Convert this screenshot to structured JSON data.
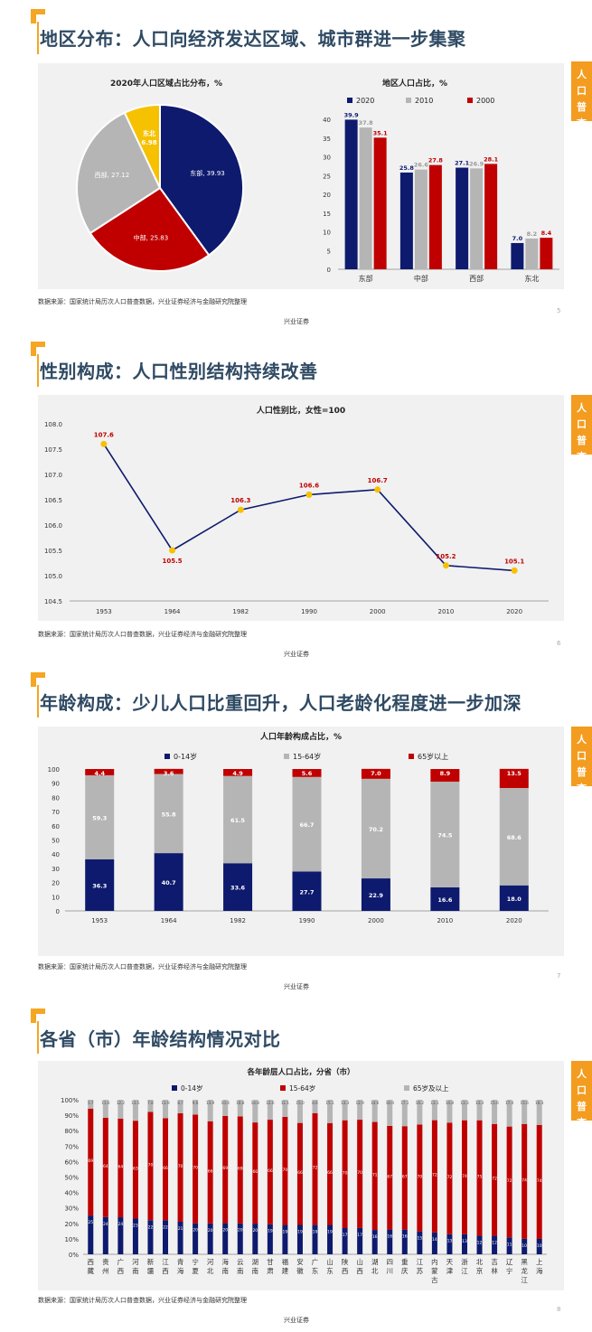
{
  "common": {
    "tab_label_lines": [
      "人",
      "口",
      "普",
      "查"
    ],
    "source": "数据来源：国家统计局历次人口普查数据，兴业证券经济与金融研究院整理",
    "logo": "兴业证券"
  },
  "colors": {
    "navy": "#0d1a6e",
    "gray": "#b5b5b5",
    "red": "#c00000",
    "yellow": "#f6c100",
    "accent": "#f39c1f",
    "title": "#2f4a63"
  },
  "slides": [
    {
      "title": "地区分布：人口向经济发达区域、城市群进一步集聚",
      "page_number": "5"
    },
    {
      "title": "性别构成：人口性别结构持续改善",
      "page_number": "6"
    },
    {
      "title": "年龄构成：少儿人口比重回升，人口老龄化程度进一步加深",
      "page_number": "7"
    },
    {
      "title": "各省（市）年龄结构情况对比",
      "page_number": "8"
    }
  ],
  "chart_data": [
    {
      "type": "pie",
      "title": "2020年人口区域占比分布，%",
      "labels": [
        "东部",
        "中部",
        "西部",
        "东北"
      ],
      "values": [
        39.93,
        25.83,
        27.12,
        6.98
      ],
      "label_texts": [
        "东部, 39.93",
        "中部, 25.83",
        "西部, 27.12",
        "东北, 6.98"
      ]
    },
    {
      "type": "bar",
      "title": "地区人口占比，%",
      "categories": [
        "东部",
        "中部",
        "西部",
        "东北"
      ],
      "series": [
        {
          "name": "2020",
          "values": [
            39.9,
            25.8,
            27.1,
            7.0
          ]
        },
        {
          "name": "2010",
          "values": [
            37.8,
            26.6,
            26.9,
            8.2
          ]
        },
        {
          "name": "2000",
          "values": [
            35.1,
            27.8,
            28.1,
            8.4
          ]
        }
      ],
      "ylim": [
        0,
        40
      ],
      "yticks": [
        0,
        5,
        10,
        15,
        20,
        25,
        30,
        35,
        40
      ],
      "legend": "top"
    },
    {
      "type": "line",
      "title": "人口性别比，女性=100",
      "x": [
        "1953",
        "1964",
        "1982",
        "1990",
        "2000",
        "2010",
        "2020"
      ],
      "values": [
        107.6,
        105.5,
        106.3,
        106.6,
        106.7,
        105.2,
        105.1
      ],
      "ylim": [
        104.5,
        108.0
      ],
      "yticks": [
        "104.5",
        "105.0",
        "105.5",
        "106.0",
        "106.5",
        "107.0",
        "107.5",
        "108.0"
      ]
    },
    {
      "type": "bar",
      "stacked": true,
      "title": "人口年龄构成占比，%",
      "categories": [
        "1953",
        "1964",
        "1982",
        "1990",
        "2000",
        "2010",
        "2020"
      ],
      "series": [
        {
          "name": "0-14岁",
          "values": [
            36.3,
            40.7,
            33.6,
            27.7,
            22.9,
            16.6,
            18.0
          ]
        },
        {
          "name": "15-64岁",
          "values": [
            59.3,
            55.8,
            61.5,
            66.7,
            70.2,
            74.5,
            68.6
          ]
        },
        {
          "name": "65岁以上",
          "values": [
            4.4,
            3.6,
            4.9,
            5.6,
            7.0,
            8.9,
            13.5
          ]
        }
      ],
      "ylim": [
        0,
        100
      ],
      "yticks": [
        0,
        10,
        20,
        30,
        40,
        50,
        60,
        70,
        80,
        90,
        100
      ],
      "legend": "top"
    },
    {
      "type": "bar",
      "stacked": true,
      "title": "各年龄层人口占比，分省（市）",
      "categories": [
        "西藏",
        "贵州",
        "广西",
        "河南",
        "新疆",
        "江西",
        "青海",
        "宁夏",
        "河北",
        "海南",
        "云南",
        "湖南",
        "甘肃",
        "福建",
        "安徽",
        "广东",
        "山东",
        "陕西",
        "山西",
        "湖北",
        "四川",
        "重庆",
        "江苏",
        "内蒙古",
        "天津",
        "浙江",
        "北京",
        "吉林",
        "辽宁",
        "黑龙江",
        "上海"
      ],
      "category_lines": [
        [
          "西",
          "藏"
        ],
        [
          "贵",
          "州"
        ],
        [
          "广",
          "西"
        ],
        [
          "河",
          "南"
        ],
        [
          "新",
          "疆"
        ],
        [
          "江",
          "西"
        ],
        [
          "青",
          "海"
        ],
        [
          "宁",
          "夏"
        ],
        [
          "河",
          "北"
        ],
        [
          "海",
          "南"
        ],
        [
          "云",
          "南"
        ],
        [
          "湖",
          "南"
        ],
        [
          "甘",
          "肃"
        ],
        [
          "福",
          "建"
        ],
        [
          "安",
          "徽"
        ],
        [
          "广",
          "东"
        ],
        [
          "山",
          "东"
        ],
        [
          "陕",
          "西"
        ],
        [
          "山",
          "西"
        ],
        [
          "湖",
          "北"
        ],
        [
          "四",
          "川"
        ],
        [
          "重",
          "庆"
        ],
        [
          "江",
          "苏"
        ],
        [
          "内",
          "蒙",
          "古"
        ],
        [
          "天",
          "津"
        ],
        [
          "浙",
          "江"
        ],
        [
          "北",
          "京"
        ],
        [
          "吉",
          "林"
        ],
        [
          "辽",
          "宁"
        ],
        [
          "黑",
          "龙",
          "江"
        ],
        [
          "上",
          "海"
        ]
      ],
      "series": [
        {
          "name": "0-14岁",
          "values": [
            25,
            24,
            24,
            23,
            22,
            22,
            21,
            20,
            20,
            20,
            20,
            20,
            19,
            19,
            19,
            19,
            19,
            17,
            17,
            16,
            16,
            16,
            15,
            14,
            13,
            13,
            12,
            12,
            11,
            10,
            10
          ]
        },
        {
          "name": "15-64岁",
          "values": [
            69,
            64,
            64,
            63,
            70,
            66,
            70,
            70,
            66,
            69,
            69,
            66,
            66,
            70,
            66,
            72,
            66,
            70,
            70,
            71,
            67,
            67,
            70,
            72,
            72,
            74,
            75,
            72,
            72,
            74,
            74
          ]
        },
        {
          "name": "65岁及以上",
          "values": [
            5.7,
            11.6,
            12.2,
            13.5,
            7.8,
            11.9,
            8.7,
            9.6,
            13.9,
            10.4,
            10.8,
            14.8,
            12.6,
            11.1,
            15.0,
            8.6,
            15.1,
            13.3,
            12.9,
            14.6,
            16.9,
            17.1,
            16.2,
            13.1,
            14.8,
            13.3,
            13.3,
            15.6,
            17.4,
            15.6,
            16.3
          ]
        }
      ],
      "ylim": [
        0,
        100
      ],
      "yticks": [
        "0%",
        "10%",
        "20%",
        "30%",
        "40%",
        "50%",
        "60%",
        "70%",
        "80%",
        "90%",
        "100%"
      ],
      "legend": "top"
    }
  ]
}
